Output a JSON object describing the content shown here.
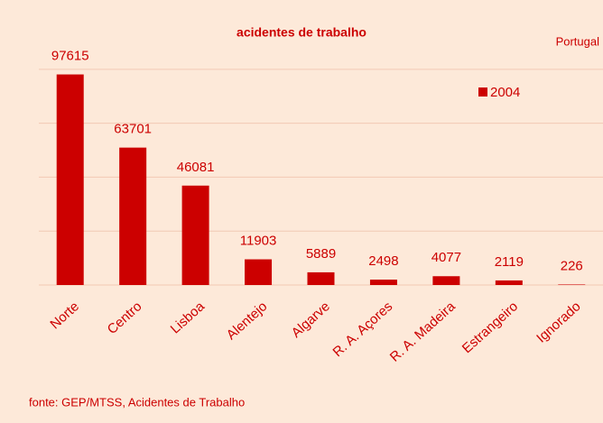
{
  "chart_data": {
    "type": "bar",
    "title": "acidentes de trabalho",
    "annotation": "Portugal",
    "source": "fonte: GEP/MTSS, Acidentes de Trabalho",
    "categories": [
      "Norte",
      "Centro",
      "Lisboa",
      "Alentejo",
      "Algarve",
      "R. A. Açores",
      "R. A. Madeira",
      "Estrangeiro",
      "Ignorado"
    ],
    "series": [
      {
        "name": "2004",
        "color": "#cc0000",
        "values": [
          97615,
          63701,
          46081,
          11903,
          5889,
          2498,
          4077,
          2119,
          226
        ]
      }
    ],
    "ylim": [
      0,
      120000
    ],
    "yticks": [
      0,
      25000,
      50000,
      75000,
      100000
    ],
    "grid": true,
    "legend": "upper right"
  }
}
